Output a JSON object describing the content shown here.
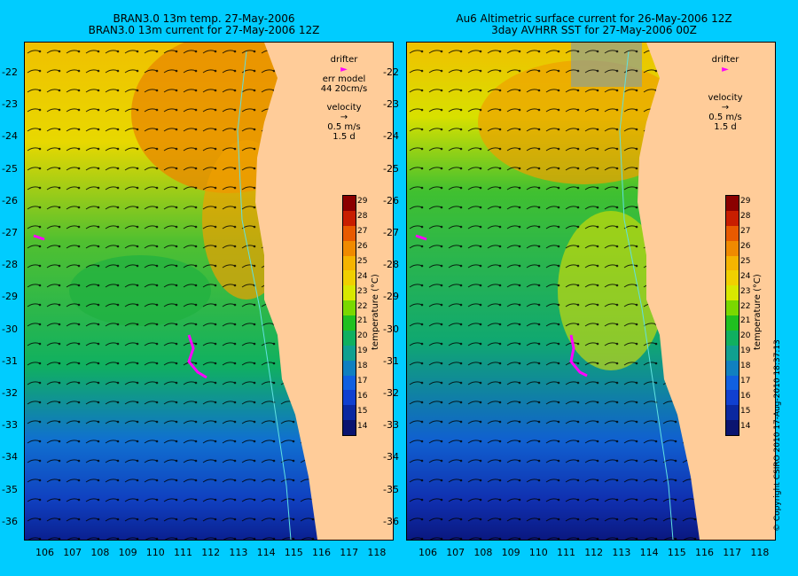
{
  "left": {
    "title_line1": "BRAN3.0 13m temp. 27-May-2006",
    "title_line2": "BRAN3.0 13m current for 27-May-2006 12Z",
    "legend_drifter": "drifter",
    "legend_err": "err model",
    "legend_err_value": "44 20cm/s",
    "legend_velocity": "velocity",
    "legend_speed": "0.5 m/s",
    "legend_days": "1.5 d"
  },
  "right": {
    "title_line1": "Au6 Altimetric surface current for 26-May-2006 12Z",
    "title_line2": "3day AVHRR SST for 27-May-2006 00Z",
    "legend_drifter": "drifter",
    "legend_velocity": "velocity",
    "legend_speed": "0.5 m/s",
    "legend_days": "1.5 d"
  },
  "colorbar": {
    "title": "temperature (°C)",
    "ticks": [
      "29",
      "28",
      "27",
      "26",
      "25",
      "24",
      "23",
      "22",
      "21",
      "20",
      "19",
      "18",
      "17",
      "16",
      "15",
      "14"
    ],
    "colors": [
      "#8b0000",
      "#c81e00",
      "#e85a00",
      "#f08a00",
      "#f5b400",
      "#f0d000",
      "#d8e800",
      "#7ad800",
      "#20c020",
      "#10b060",
      "#10a090",
      "#1080c0",
      "#1060e0",
      "#1040d0",
      "#0a28a0",
      "#0a1470"
    ]
  },
  "axes": {
    "lat_labels": [
      "-22",
      "-23",
      "-24",
      "-25",
      "-26",
      "-27",
      "-28",
      "-29",
      "-30",
      "-31",
      "-32",
      "-33",
      "-34",
      "-35",
      "-36"
    ],
    "lon_labels": [
      "106",
      "107",
      "108",
      "109",
      "110",
      "111",
      "112",
      "113",
      "114",
      "115",
      "116",
      "117",
      "118"
    ]
  },
  "copyright": "© Copyright CSIRO 2010   17-Aug-2010 18:37:13",
  "colors": {
    "background": "#00ccff",
    "land": "#ffcc99",
    "drifter": "#ff00ff"
  }
}
